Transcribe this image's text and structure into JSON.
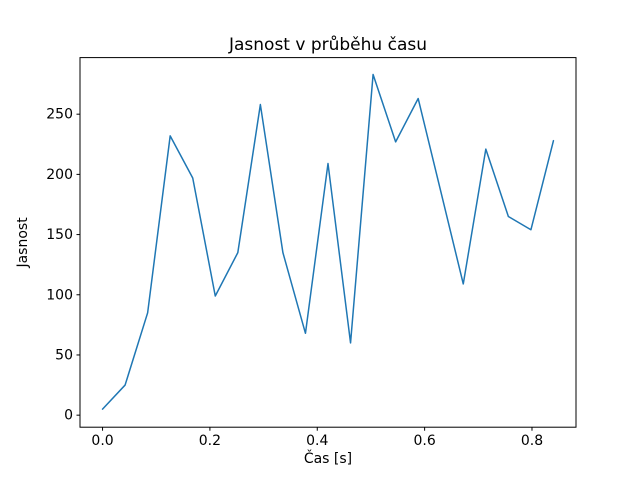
{
  "chart_data": {
    "type": "line",
    "title": "Jasnost v průběhu času",
    "xlabel": "Čas [s]",
    "ylabel": "Jasnost",
    "x": [
      0.0,
      0.042,
      0.084,
      0.126,
      0.168,
      0.21,
      0.252,
      0.294,
      0.336,
      0.378,
      0.42,
      0.462,
      0.504,
      0.546,
      0.588,
      0.63,
      0.672,
      0.714,
      0.756,
      0.798,
      0.84
    ],
    "series": [
      {
        "name": "jasnost",
        "values": [
          5,
          25,
          85,
          232,
          197,
          99,
          135,
          258,
          135,
          68,
          209,
          60,
          283,
          227,
          263,
          186,
          109,
          221,
          165,
          154,
          228
        ],
        "color": "#1f77b4"
      }
    ],
    "xlim": [
      -0.042,
      0.882
    ],
    "ylim": [
      -10,
      297
    ],
    "xticks": [
      0.0,
      0.2,
      0.4,
      0.6,
      0.8
    ],
    "xtick_labels": [
      "0.0",
      "0.2",
      "0.4",
      "0.6",
      "0.8"
    ],
    "yticks": [
      0,
      50,
      100,
      150,
      200,
      250
    ],
    "ytick_labels": [
      "0",
      "50",
      "100",
      "150",
      "200",
      "250"
    ],
    "grid": false,
    "legend": "none",
    "background_color": "#ffffff",
    "spine_color": "#000000"
  }
}
